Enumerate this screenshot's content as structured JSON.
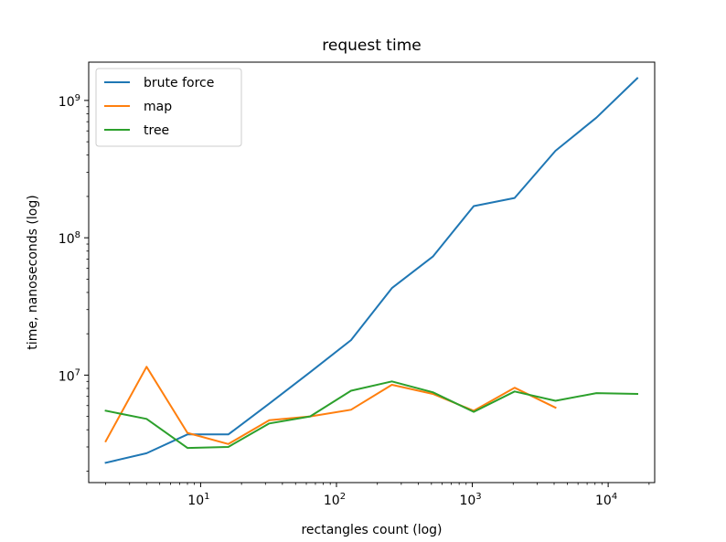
{
  "chart_data": {
    "type": "line",
    "title": "request time",
    "xlabel": "rectangles count (log)",
    "ylabel": "time, nanoseconds (log)",
    "xscale": "log",
    "yscale": "log",
    "xlim": [
      1.5,
      22000
    ],
    "ylim": [
      1650000,
      1900000000
    ],
    "grid": false,
    "legend_position": "upper-left",
    "x_ticks": [
      {
        "value": 10,
        "base": "10",
        "exp": "1"
      },
      {
        "value": 100,
        "base": "10",
        "exp": "2"
      },
      {
        "value": 1000,
        "base": "10",
        "exp": "3"
      },
      {
        "value": 10000,
        "base": "10",
        "exp": "4"
      }
    ],
    "y_ticks": [
      {
        "value": 10000000,
        "base": "10",
        "exp": "7"
      },
      {
        "value": 100000000,
        "base": "10",
        "exp": "8"
      },
      {
        "value": 1000000000,
        "base": "10",
        "exp": "9"
      }
    ],
    "series": [
      {
        "name": "brute force",
        "color": "#1f77b4",
        "x": [
          2,
          4,
          8,
          16,
          32,
          64,
          128,
          256,
          512,
          1024,
          2048,
          4096,
          8192,
          16384
        ],
        "y": [
          2300000,
          2700000,
          3700000,
          3700000,
          6200000,
          10500000,
          18000000,
          43000000,
          73000000,
          170000000,
          195000000,
          430000000,
          750000000,
          1450000000
        ]
      },
      {
        "name": "map",
        "color": "#ff7f0e",
        "x": [
          2,
          4,
          8,
          16,
          32,
          64,
          128,
          256,
          512,
          1024,
          2048,
          4096
        ],
        "y": [
          3300000,
          11500000,
          3800000,
          3150000,
          4700000,
          5000000,
          5600000,
          8500000,
          7300000,
          5500000,
          8100000,
          5800000
        ]
      },
      {
        "name": "tree",
        "color": "#2ca02c",
        "x": [
          2,
          4,
          8,
          16,
          32,
          64,
          128,
          256,
          512,
          1024,
          2048,
          4096,
          8192,
          16384
        ],
        "y": [
          5500000,
          4800000,
          2950000,
          3000000,
          4450000,
          5000000,
          7700000,
          9000000,
          7500000,
          5400000,
          7600000,
          6500000,
          7400000,
          7300000
        ]
      }
    ]
  }
}
